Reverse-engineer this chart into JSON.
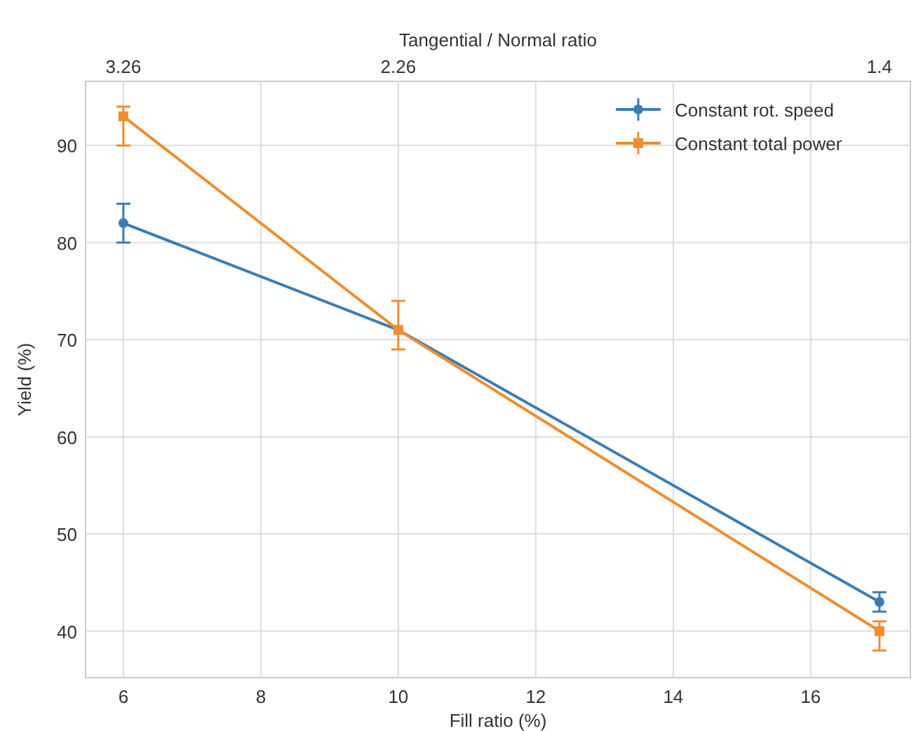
{
  "chart_data": {
    "type": "line",
    "xlabel": "Fill ratio (%)",
    "ylabel": "Yield (%)",
    "x2label": "Tangential / Normal ratio",
    "x": [
      6,
      10,
      17
    ],
    "series": [
      {
        "name": "Constant rot. speed",
        "color": "#3a7db5",
        "values": [
          82,
          71,
          43
        ],
        "errors": [
          [
            80,
            84
          ],
          null,
          [
            42,
            44
          ]
        ],
        "marker": "circle"
      },
      {
        "name": "Constant total power",
        "color": "#ee8e2e",
        "values": [
          93,
          71,
          40
        ],
        "errors": [
          [
            90,
            94
          ],
          [
            69,
            74
          ],
          [
            38,
            41
          ]
        ],
        "marker": "square"
      }
    ],
    "xlim": [
      5.45,
      17.45
    ],
    "xticks": [
      6,
      8,
      10,
      12,
      14,
      16
    ],
    "annotations": [
      "3.26",
      "2.26",
      "1.4"
    ],
    "ylim": [
      35.2,
      96.6
    ],
    "yticks": [
      40,
      50,
      60,
      70,
      80,
      90
    ],
    "grid": true,
    "legend": "top right",
    "line_style": "solid"
  }
}
